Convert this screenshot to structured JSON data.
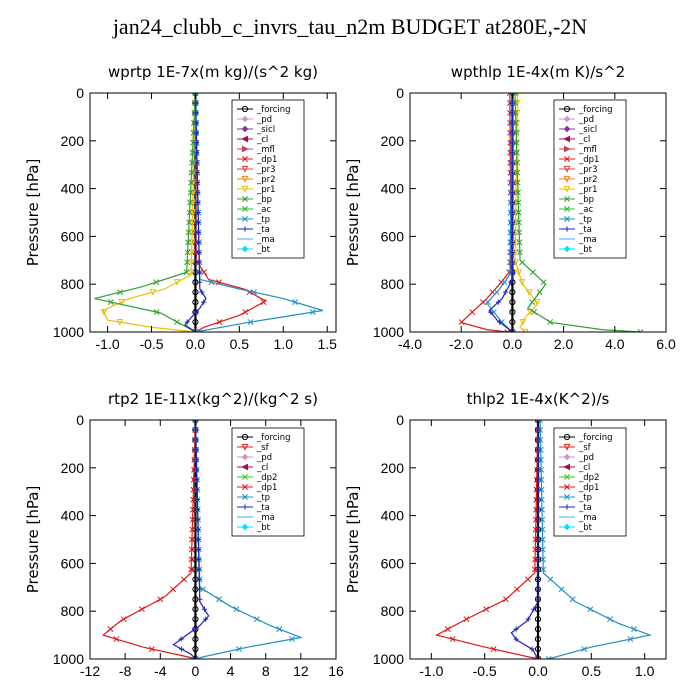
{
  "title": "jan24_clubb_c_invrs_tau_n2m  BUDGET at280E,-2N",
  "chart_data": [
    {
      "type": "line",
      "title": "wprtp  1E-7x(m kg)/(s^2 kg)",
      "ylabel": "Pressure [hPa]",
      "xlim": [
        -1.2,
        1.6
      ],
      "ylim": [
        1000,
        0
      ],
      "x_ticks": [
        -1.0,
        -0.5,
        0.0,
        0.5,
        1.0,
        1.5
      ],
      "x_tick_labels": [
        "-1.0",
        "-0.5",
        "0.0",
        "0.5",
        "1.0",
        "1.5"
      ],
      "y_ticks": [
        0,
        200,
        400,
        600,
        800,
        1000
      ],
      "legend": [
        "_forcing",
        "_pd",
        "_sicl",
        "_cl",
        "_mfl",
        "_dp1",
        "_pr3",
        "_pr2",
        "_pr1",
        "_bp",
        "_ac",
        "_tp",
        "_ta",
        "_ma",
        "_bt"
      ],
      "series": [
        {
          "name": "_forcing",
          "x": [
            0,
            0,
            0
          ],
          "y": [
            0,
            500,
            1000
          ]
        },
        {
          "name": "_dp1",
          "x": [
            0,
            0.01,
            0.15,
            0.55,
            0.8,
            0.5,
            0.1,
            0
          ],
          "y": [
            0,
            700,
            780,
            820,
            870,
            930,
            980,
            1000
          ]
        },
        {
          "name": "_pr1",
          "x": [
            0,
            -0.05,
            -0.35,
            -0.75,
            -1.05,
            -1.0,
            -0.5,
            0
          ],
          "y": [
            0,
            760,
            820,
            860,
            910,
            950,
            980,
            1000
          ]
        },
        {
          "name": "_bp",
          "x": [
            0,
            -0.1,
            -0.6,
            -1.15,
            -0.4,
            0
          ],
          "y": [
            0,
            750,
            810,
            860,
            920,
            1000
          ]
        },
        {
          "name": "_tp",
          "x": [
            0,
            0.05,
            0.5,
            1.0,
            1.45,
            0.6,
            0
          ],
          "y": [
            0,
            780,
            820,
            860,
            910,
            960,
            1000
          ]
        },
        {
          "name": "_ta",
          "x": [
            0,
            0.05,
            0.12,
            0.05,
            -0.05,
            -0.12,
            0
          ],
          "y": [
            0,
            820,
            860,
            900,
            940,
            970,
            1000
          ]
        }
      ]
    },
    {
      "type": "line",
      "title": "wpthlp  1E-4x(m K)/s^2",
      "ylabel": "Pressure [hPa]",
      "xlim": [
        -4.0,
        6.0
      ],
      "ylim": [
        1000,
        0
      ],
      "x_ticks": [
        -4.0,
        -2.0,
        0.0,
        2.0,
        4.0,
        6.0
      ],
      "x_tick_labels": [
        "-4.0",
        "-2.0",
        "0.0",
        "2.0",
        "4.0",
        "6.0"
      ],
      "y_ticks": [
        0,
        200,
        400,
        600,
        800,
        1000
      ],
      "legend": [
        "_forcing",
        "_pd",
        "_sicl",
        "_cl",
        "_mfl",
        "_dp1",
        "_pr3",
        "_pr2",
        "_pr1",
        "_bp",
        "_ac",
        "_tp",
        "_ta",
        "_ma",
        "_bt"
      ],
      "series": [
        {
          "name": "_forcing",
          "x": [
            0,
            0,
            0
          ],
          "y": [
            0,
            500,
            1000
          ]
        },
        {
          "name": "_dp1",
          "x": [
            -0.1,
            -0.05,
            -0.5,
            -1.0,
            -1.5,
            -2.0,
            -1.0,
            -0.2
          ],
          "y": [
            0,
            740,
            800,
            860,
            910,
            960,
            990,
            1000
          ]
        },
        {
          "name": "_pr1",
          "x": [
            0.2,
            0.1,
            0.4,
            1.0,
            0.5,
            0.3,
            0.5
          ],
          "y": [
            0,
            700,
            800,
            880,
            940,
            980,
            1000
          ]
        },
        {
          "name": "_bp",
          "x": [
            0.1,
            0.3,
            1.3,
            0.6,
            1.5,
            3.5,
            5.0
          ],
          "y": [
            0,
            700,
            800,
            900,
            960,
            990,
            1000
          ]
        },
        {
          "name": "_tp",
          "x": [
            0,
            -0.1,
            -0.5,
            -1.0,
            -0.7,
            -0.4,
            0
          ],
          "y": [
            0,
            760,
            820,
            880,
            920,
            960,
            1000
          ]
        },
        {
          "name": "_ta",
          "x": [
            0,
            0,
            -0.4,
            -0.9,
            -0.6,
            0
          ],
          "y": [
            0,
            780,
            860,
            910,
            950,
            1000
          ]
        }
      ]
    },
    {
      "type": "line",
      "title": "rtp2  1E-11x(kg^2)/(kg^2 s)",
      "ylabel": "Pressure [hPa]",
      "xlim": [
        -12,
        16
      ],
      "ylim": [
        1000,
        0
      ],
      "x_ticks": [
        -12,
        -8,
        -4,
        0,
        4,
        8,
        12,
        16
      ],
      "x_tick_labels": [
        "-12",
        "-8",
        "-4",
        "0",
        "4",
        "8",
        "12",
        "16"
      ],
      "y_ticks": [
        0,
        200,
        400,
        600,
        800,
        1000
      ],
      "legend": [
        "_forcing",
        "_sf",
        "_pd",
        "_cl",
        "_dp2",
        "_dp1",
        "_tp",
        "_ta",
        "_ma",
        "_bt"
      ],
      "series": [
        {
          "name": "_forcing",
          "x": [
            0,
            0,
            0
          ],
          "y": [
            0,
            500,
            1000
          ]
        },
        {
          "name": "_dp1",
          "x": [
            0,
            -0.5,
            -3.5,
            -8.5,
            -10.5,
            -6.0,
            -1.0,
            0
          ],
          "y": [
            0,
            640,
            740,
            840,
            900,
            950,
            990,
            1000
          ]
        },
        {
          "name": "_tp",
          "x": [
            0,
            0.5,
            4.0,
            8.5,
            12.0,
            6.0,
            1.0,
            0
          ],
          "y": [
            0,
            700,
            780,
            860,
            910,
            950,
            990,
            1000
          ]
        },
        {
          "name": "_ta",
          "x": [
            0,
            0.5,
            1.5,
            0.5,
            -1.0,
            -2.5,
            -0.5,
            0
          ],
          "y": [
            0,
            760,
            820,
            860,
            900,
            940,
            980,
            1000
          ]
        }
      ]
    },
    {
      "type": "line",
      "title": "thlp2  1E-4x(K^2)/s",
      "ylabel": "Pressure [hPa]",
      "xlim": [
        -1.2,
        1.2
      ],
      "ylim": [
        1000,
        0
      ],
      "x_ticks": [
        -1.0,
        -0.5,
        0.0,
        0.5,
        1.0
      ],
      "x_tick_labels": [
        "-1.0",
        "-0.5",
        "0.0",
        "0.5",
        "1.0"
      ],
      "y_ticks": [
        0,
        200,
        400,
        600,
        800,
        1000
      ],
      "legend": [
        "_forcing",
        "_sf",
        "_pd",
        "_cl",
        "_dp2",
        "_dp1",
        "_tp",
        "_ta",
        "_ma",
        "_bt"
      ],
      "series": [
        {
          "name": "_forcing",
          "x": [
            0,
            0,
            0
          ],
          "y": [
            0,
            500,
            1000
          ]
        },
        {
          "name": "_dp1",
          "x": [
            0,
            -0.03,
            -0.3,
            -0.7,
            -0.95,
            -0.5,
            0
          ],
          "y": [
            0,
            640,
            750,
            840,
            900,
            950,
            1000
          ]
        },
        {
          "name": "_tp",
          "x": [
            0.02,
            0.05,
            0.35,
            0.75,
            1.05,
            0.5,
            0.1
          ],
          "y": [
            0,
            640,
            760,
            850,
            900,
            950,
            1000
          ]
        },
        {
          "name": "_ta",
          "x": [
            0,
            0,
            -0.1,
            -0.25,
            -0.2,
            -0.05,
            0
          ],
          "y": [
            0,
            760,
            840,
            890,
            920,
            960,
            1000
          ]
        }
      ]
    }
  ],
  "legend_colors": {
    "_forcing": "#000000",
    "_pd": "#c898c8",
    "_sicl": "#8030a0",
    "_cl": "#a01040",
    "_mfl": "#c04060",
    "_dp1": "#e01818",
    "_pr3": "#e04030",
    "_pr2": "#f08020",
    "_pr1": "#f0c000",
    "_bp": "#30a030",
    "_ac": "#20c020",
    "_tp": "#2090c0",
    "_ta": "#2020c0",
    "_ma": "#40b0e0",
    "_bt": "#00e0ff",
    "_sf": "#e02020",
    "_dp2": "#40c020"
  }
}
